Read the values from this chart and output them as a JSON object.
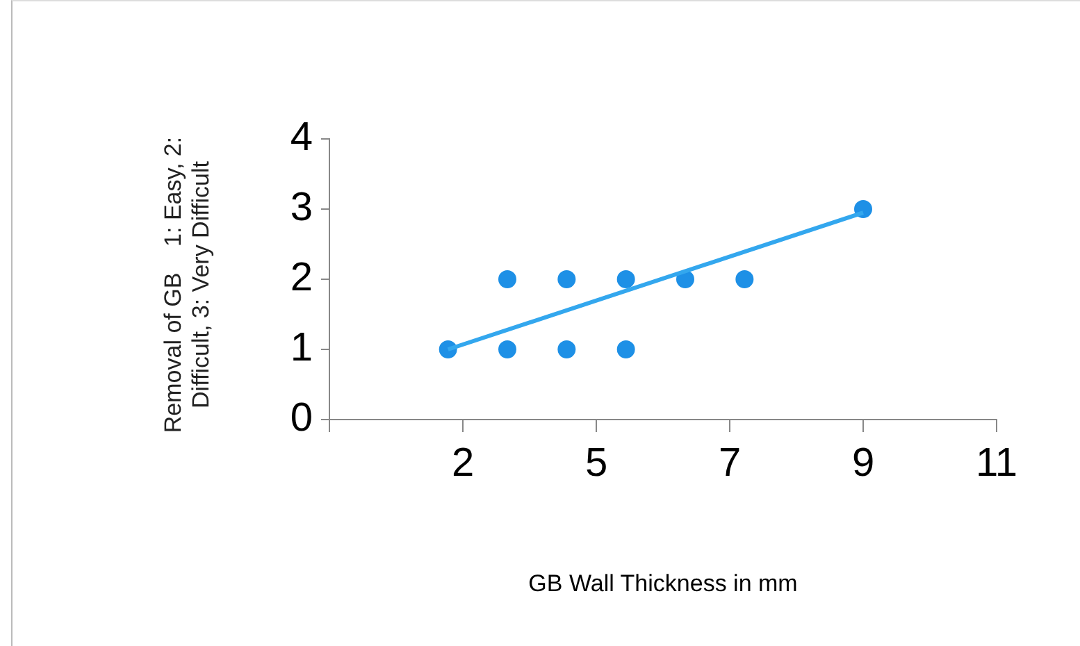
{
  "chart_data": {
    "type": "scatter",
    "xlabel": "GB Wall Thickness in mm",
    "ylabel": "Removal of GB    1: Easy, 2: Difficult, 3: Very Difficult",
    "series": [
      {
        "marker": "circle",
        "color": "#1e90e6",
        "x": [
          2,
          3,
          3,
          4,
          4,
          5,
          5,
          6,
          7,
          9
        ],
        "values": [
          1,
          1,
          2,
          1,
          2,
          1,
          2,
          2,
          2,
          3
        ]
      },
      {
        "type": "line",
        "color": "#33a7ee",
        "x": [
          2,
          9
        ],
        "values": [
          1.0,
          2.95
        ]
      }
    ],
    "xlim": [
      0,
      11.25
    ],
    "xticks": [
      {
        "value": 0,
        "label": null
      },
      {
        "value": 2.25,
        "label": "2"
      },
      {
        "value": 4.5,
        "label": "5"
      },
      {
        "value": 6.75,
        "label": "7"
      },
      {
        "value": 9,
        "label": "9"
      },
      {
        "value": 11.25,
        "label": "11"
      }
    ],
    "ylim": [
      0,
      4
    ],
    "yticks": [
      0,
      1,
      2,
      3,
      4
    ],
    "grid": false,
    "legend": false
  }
}
